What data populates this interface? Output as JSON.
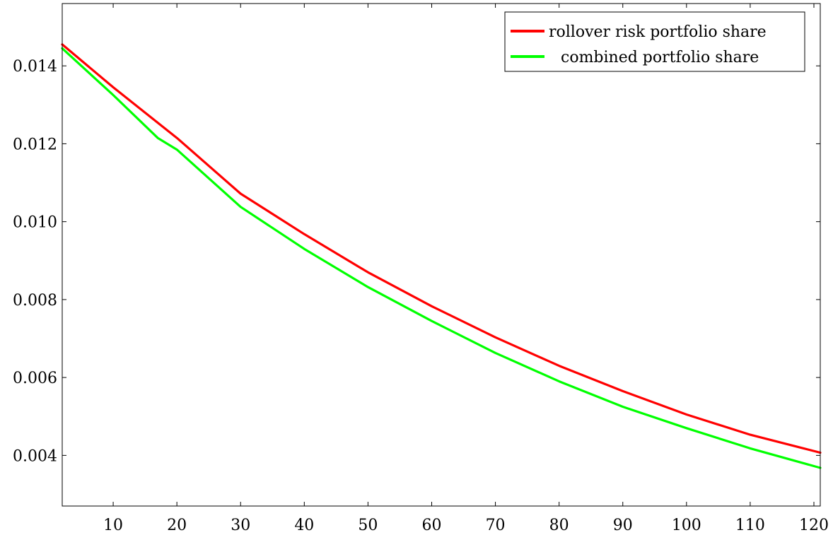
{
  "chart_data": {
    "type": "line",
    "title": "",
    "xlabel": "",
    "ylabel": "",
    "xlim": [
      2,
      121
    ],
    "ylim": [
      0.0027,
      0.0156
    ],
    "x_ticks": [
      {
        "value": 10,
        "label": "10"
      },
      {
        "value": 20,
        "label": "20"
      },
      {
        "value": 30,
        "label": "30"
      },
      {
        "value": 40,
        "label": "40"
      },
      {
        "value": 50,
        "label": "50"
      },
      {
        "value": 60,
        "label": "60"
      },
      {
        "value": 70,
        "label": "70"
      },
      {
        "value": 80,
        "label": "80"
      },
      {
        "value": 90,
        "label": "90"
      },
      {
        "value": 100,
        "label": "100"
      },
      {
        "value": 110,
        "label": "110"
      },
      {
        "value": 120,
        "label": "120"
      }
    ],
    "y_ticks": [
      {
        "value": 0.004,
        "label": "0.004"
      },
      {
        "value": 0.006,
        "label": "0.006"
      },
      {
        "value": 0.008,
        "label": "0.008"
      },
      {
        "value": 0.01,
        "label": "0.010"
      },
      {
        "value": 0.012,
        "label": "0.012"
      },
      {
        "value": 0.014,
        "label": "0.014"
      }
    ],
    "grid": false,
    "legend_position": "top-right",
    "series": [
      {
        "name": "rollover risk portfolio share",
        "color": "#ff0000",
        "x": [
          2,
          10,
          20,
          30,
          40,
          50,
          60,
          70,
          80,
          90,
          100,
          110,
          121
        ],
        "y": [
          0.01455,
          0.01345,
          0.01215,
          0.01072,
          0.00968,
          0.0087,
          0.00783,
          0.00703,
          0.0063,
          0.00565,
          0.00505,
          0.00453,
          0.00407
        ]
      },
      {
        "name": "combined portfolio share",
        "color": "#00ff00",
        "x": [
          2,
          10,
          17,
          20,
          30,
          40,
          50,
          60,
          70,
          80,
          90,
          100,
          110,
          121
        ],
        "y": [
          0.01445,
          0.01325,
          0.01215,
          0.01185,
          0.01038,
          0.0093,
          0.00832,
          0.00745,
          0.00663,
          0.0059,
          0.00525,
          0.0047,
          0.00418,
          0.00368
        ]
      }
    ]
  }
}
